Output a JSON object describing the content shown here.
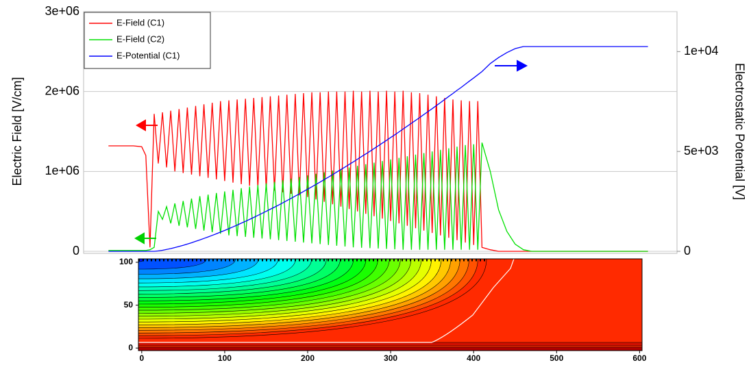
{
  "chart_data": [
    {
      "type": "line",
      "ylabel": "Electric Field [V/cm]",
      "y2label": "Electrostatic Potential [V]",
      "grid": true,
      "legend": "upper left",
      "xlim": [
        -70,
        645
      ],
      "ylim": [
        0,
        3000000
      ],
      "yticks": [
        0,
        {
          "value": 1000000,
          "label": "1e+06"
        },
        {
          "value": 2000000,
          "label": "2e+06"
        },
        {
          "value": 3000000,
          "label": "3e+06"
        }
      ],
      "y2lim": [
        0,
        12000
      ],
      "y2ticks": [
        0,
        {
          "value": 5000,
          "label": "5e+03"
        },
        {
          "value": 10000,
          "label": "1e+04"
        }
      ],
      "x": [
        -40,
        -30,
        -20,
        -10,
        0,
        5,
        10,
        15,
        20,
        25,
        30,
        35,
        40,
        45,
        50,
        55,
        60,
        65,
        70,
        75,
        80,
        85,
        90,
        95,
        100,
        105,
        110,
        115,
        120,
        125,
        130,
        135,
        140,
        145,
        150,
        155,
        160,
        165,
        170,
        175,
        180,
        185,
        190,
        195,
        200,
        205,
        210,
        215,
        220,
        225,
        230,
        235,
        240,
        245,
        250,
        255,
        260,
        265,
        270,
        275,
        280,
        285,
        290,
        295,
        300,
        305,
        310,
        315,
        320,
        325,
        330,
        335,
        340,
        345,
        350,
        355,
        360,
        365,
        370,
        375,
        380,
        385,
        390,
        395,
        400,
        405,
        410,
        420,
        430,
        440,
        450,
        460,
        470,
        480,
        490,
        500,
        510,
        520,
        530,
        540,
        550,
        560,
        570,
        580,
        590,
        600,
        610
      ],
      "series": [
        {
          "name": "E-Field (C1)",
          "color": "#ff0000",
          "values": [
            1320000,
            1320000,
            1320000,
            1320000,
            1310000,
            1200000,
            50000,
            1720000,
            1100000,
            1740000,
            1050000,
            1760000,
            1000000,
            1780000,
            980000,
            1800000,
            960000,
            1820000,
            940000,
            1840000,
            920000,
            1860000,
            900000,
            1880000,
            880000,
            1890000,
            860000,
            1900000,
            840000,
            1910000,
            820000,
            1920000,
            800000,
            1930000,
            780000,
            1940000,
            760000,
            1950000,
            740000,
            1960000,
            720000,
            1970000,
            700000,
            1980000,
            680000,
            1990000,
            650000,
            1990000,
            620000,
            2000000,
            590000,
            2000000,
            560000,
            2000000,
            530000,
            2010000,
            500000,
            2000000,
            470000,
            2010000,
            440000,
            2000000,
            410000,
            2010000,
            380000,
            2000000,
            350000,
            2010000,
            320000,
            1990000,
            290000,
            1980000,
            260000,
            1960000,
            230000,
            1940000,
            200000,
            1920000,
            170000,
            1900000,
            140000,
            1890000,
            110000,
            1880000,
            80000,
            1880000,
            50000,
            20000,
            0,
            0,
            0,
            0,
            0,
            0,
            0,
            0,
            0,
            0,
            0,
            0,
            0,
            0,
            0,
            0,
            0,
            0,
            0
          ]
        },
        {
          "name": "E-Field (C2)",
          "color": "#00e000",
          "values": [
            10000,
            10000,
            10000,
            10000,
            10000,
            10000,
            20000,
            50000,
            500000,
            400000,
            560000,
            350000,
            600000,
            320000,
            630000,
            300000,
            660000,
            280000,
            690000,
            260000,
            710000,
            240000,
            730000,
            220000,
            750000,
            200000,
            770000,
            190000,
            790000,
            180000,
            810000,
            170000,
            830000,
            160000,
            850000,
            150000,
            870000,
            140000,
            890000,
            130000,
            910000,
            120000,
            930000,
            110000,
            950000,
            100000,
            970000,
            90000,
            990000,
            80000,
            1010000,
            70000,
            1030000,
            60000,
            1050000,
            50000,
            1070000,
            45000,
            1090000,
            40000,
            1110000,
            35000,
            1130000,
            30000,
            1150000,
            25000,
            1170000,
            20000,
            1190000,
            20000,
            1210000,
            20000,
            1230000,
            20000,
            1250000,
            20000,
            1270000,
            20000,
            1290000,
            20000,
            1310000,
            20000,
            1330000,
            20000,
            1340000,
            20000,
            1360000,
            1000000,
            520000,
            250000,
            90000,
            20000,
            0,
            0,
            0,
            0,
            0,
            0,
            0,
            0,
            0,
            0,
            0,
            0,
            0,
            0,
            0
          ]
        },
        {
          "name": "E-Potential (C1)",
          "color": "#0000ff",
          "axis": "y2",
          "values": [
            0,
            0,
            0,
            0,
            0,
            0,
            0,
            0,
            20,
            52,
            92,
            138,
            189,
            244,
            302,
            365,
            430,
            499,
            569,
            643,
            720,
            798,
            879,
            962,
            1047,
            1135,
            1224,
            1315,
            1408,
            1503,
            1598,
            1697,
            1798,
            1899,
            2002,
            2107,
            2212,
            2319,
            2428,
            2540,
            2651,
            2766,
            2878,
            2996,
            3112,
            3229,
            3351,
            3470,
            3594,
            3714,
            3839,
            3968,
            4093,
            4221,
            4351,
            4478,
            4610,
            4746,
            4875,
            5009,
            5146,
            5282,
            5421,
            5558,
            5699,
            5837,
            5979,
            6125,
            6267,
            6413,
            6556,
            6701,
            6850,
            6996,
            7143,
            7295,
            7443,
            7600,
            7754,
            7903,
            8062,
            8209,
            8366,
            8527,
            8681,
            8840,
            9000,
            9400,
            9700,
            9950,
            10150,
            10250,
            10250,
            10250,
            10250,
            10250,
            10250,
            10250,
            10250,
            10250,
            10250,
            10250,
            10250,
            10250,
            10250,
            10250,
            10250
          ]
        }
      ]
    },
    {
      "type": "contour",
      "xlim": [
        -4,
        603
      ],
      "ylim": [
        -3,
        104
      ],
      "xticks": [
        0,
        100,
        200,
        300,
        400,
        500,
        600
      ],
      "yticks": [
        0,
        50,
        100
      ]
    }
  ]
}
